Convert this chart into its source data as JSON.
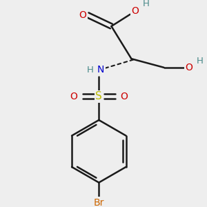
{
  "bg_color": "#eeeeee",
  "atom_colors": {
    "C": "#1a1a1a",
    "H": "#4a8a8a",
    "O": "#cc0000",
    "N": "#0000cc",
    "S": "#bbbb00",
    "Br": "#cc6600"
  },
  "bond_color": "#1a1a1a",
  "bond_width": 1.8
}
